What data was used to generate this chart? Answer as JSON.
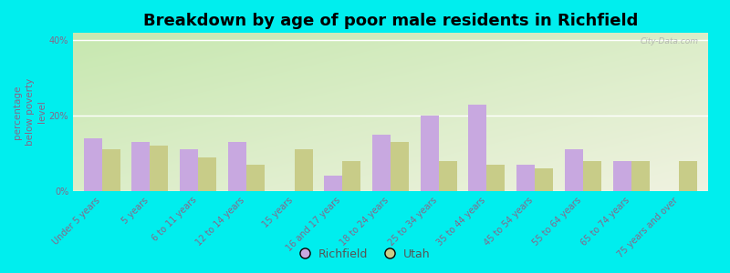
{
  "title": "Breakdown by age of poor male residents in Richfield",
  "ylabel": "percentage\nbelow poverty\nlevel",
  "categories": [
    "Under 5 years",
    "5 years",
    "6 to 11 years",
    "12 to 14 years",
    "15 years",
    "16 and 17 years",
    "18 to 24 years",
    "25 to 34 years",
    "35 to 44 years",
    "45 to 54 years",
    "55 to 64 years",
    "65 to 74 years",
    "75 years and over"
  ],
  "richfield": [
    14,
    13,
    11,
    13,
    0,
    4,
    15,
    20,
    23,
    7,
    11,
    8,
    0
  ],
  "utah": [
    11,
    12,
    9,
    7,
    11,
    8,
    13,
    8,
    7,
    6,
    8,
    8,
    8
  ],
  "richfield_color": "#c8a8e0",
  "utah_color": "#c8cc88",
  "bg_outer": "#00eeee",
  "ylim": [
    0,
    42
  ],
  "yticks": [
    0,
    20,
    40
  ],
  "ytick_labels": [
    "0%",
    "20%",
    "40%"
  ],
  "title_fontsize": 13,
  "axis_label_fontsize": 7.5,
  "tick_fontsize": 7,
  "legend_fontsize": 9,
  "bar_width": 0.38,
  "tick_color": "#886688",
  "label_color": "#886688"
}
